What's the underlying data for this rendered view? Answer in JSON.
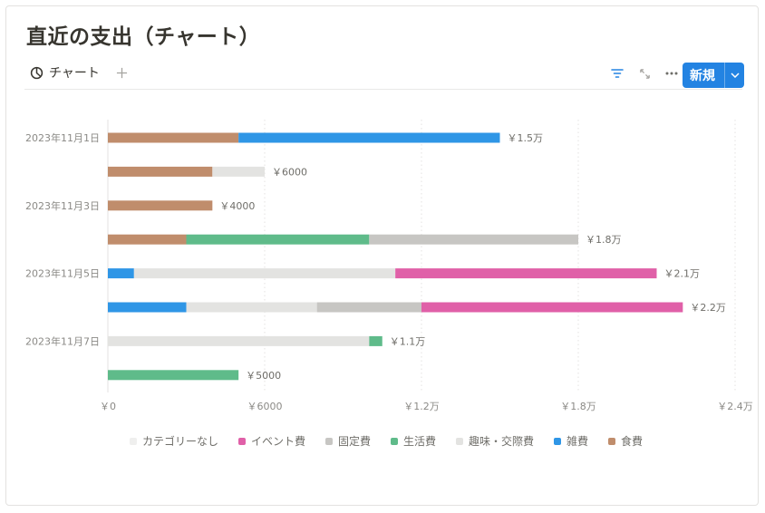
{
  "page": {
    "title": "直近の支出（チャート）",
    "tab_label": "チャート",
    "new_button_label": "新規"
  },
  "chart_data": {
    "type": "bar",
    "orientation": "horizontal",
    "stacked": true,
    "title": "",
    "xlabel": "",
    "ylabel": "",
    "xlim": [
      0,
      24000
    ],
    "x_ticks": [
      {
        "value": 0,
        "label": "￥0"
      },
      {
        "value": 6000,
        "label": "￥6000"
      },
      {
        "value": 12000,
        "label": "￥1.2万"
      },
      {
        "value": 18000,
        "label": "￥1.8万"
      },
      {
        "value": 24000,
        "label": "￥2.4万"
      }
    ],
    "grid": true,
    "legend_position": "bottom",
    "category_labels": [
      "2023年11月1日",
      "",
      "2023年11月3日",
      "",
      "2023年11月5日",
      "",
      "2023年11月7日",
      ""
    ],
    "totals": [
      "￥1.5万",
      "￥6000",
      "￥4000",
      "￥1.8万",
      "￥2.1万",
      "￥2.2万",
      "￥1.1万",
      "￥5000"
    ],
    "series": [
      {
        "name": "食費",
        "color": "#c08d6c",
        "values": [
          5000,
          4000,
          4000,
          3000,
          0,
          0,
          0,
          0
        ]
      },
      {
        "name": "雑費",
        "color": "#2f96e6",
        "values": [
          10000,
          0,
          0,
          0,
          1000,
          3000,
          0,
          0
        ]
      },
      {
        "name": "趣味・交際費",
        "color": "#e3e3e1",
        "values": [
          0,
          2000,
          0,
          0,
          10000,
          5000,
          10000,
          0
        ]
      },
      {
        "name": "生活費",
        "color": "#5fbb8a",
        "values": [
          0,
          0,
          0,
          7000,
          0,
          0,
          500,
          5000
        ]
      },
      {
        "name": "固定費",
        "color": "#c7c6c3",
        "values": [
          0,
          0,
          0,
          8000,
          0,
          4000,
          0,
          0
        ]
      },
      {
        "name": "イベント費",
        "color": "#e060a8",
        "values": [
          0,
          0,
          0,
          0,
          10000,
          10000,
          0,
          0
        ]
      },
      {
        "name": "カテゴリーなし",
        "color": "#efefee",
        "values": [
          0,
          0,
          0,
          0,
          0,
          0,
          0,
          0
        ]
      }
    ],
    "legend_order": [
      "カテゴリーなし",
      "イベント費",
      "固定費",
      "生活費",
      "趣味・交際費",
      "雑費",
      "食費"
    ]
  }
}
